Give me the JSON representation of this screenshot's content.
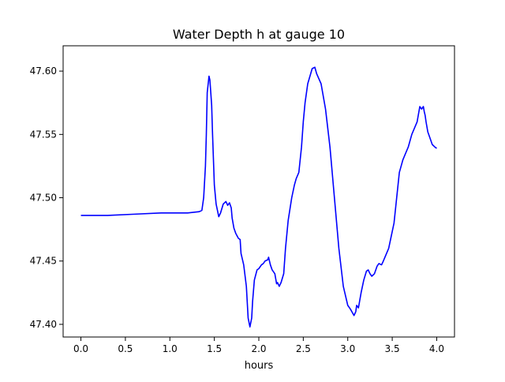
{
  "chart_data": {
    "type": "line",
    "title": "Water Depth h at gauge 10",
    "xlabel": "hours",
    "ylabel": "",
    "xlim": [
      -0.2,
      4.2
    ],
    "ylim": [
      47.39,
      47.62
    ],
    "xticks": [
      0.0,
      0.5,
      1.0,
      1.5,
      2.0,
      2.5,
      3.0,
      3.5,
      4.0
    ],
    "xtick_labels": [
      "0.0",
      "0.5",
      "1.0",
      "1.5",
      "2.0",
      "2.5",
      "3.0",
      "3.5",
      "4.0"
    ],
    "yticks": [
      47.4,
      47.45,
      47.5,
      47.55,
      47.6
    ],
    "ytick_labels": [
      "47.40",
      "47.45",
      "47.50",
      "47.55",
      "47.60"
    ],
    "grid": false,
    "series": [
      {
        "name": "",
        "color": "#0000ff",
        "x": [
          0.0,
          0.3,
          0.6,
          0.9,
          1.2,
          1.33,
          1.36,
          1.38,
          1.4,
          1.41,
          1.42,
          1.44,
          1.45,
          1.47,
          1.48,
          1.5,
          1.52,
          1.55,
          1.57,
          1.6,
          1.63,
          1.65,
          1.67,
          1.69,
          1.7,
          1.72,
          1.74,
          1.77,
          1.79,
          1.8,
          1.83,
          1.86,
          1.88,
          1.9,
          1.92,
          1.93,
          1.95,
          1.98,
          2.0,
          2.03,
          2.05,
          2.07,
          2.1,
          2.11,
          2.13,
          2.15,
          2.18,
          2.2,
          2.21,
          2.23,
          2.25,
          2.28,
          2.3,
          2.33,
          2.37,
          2.4,
          2.42,
          2.45,
          2.48,
          2.5,
          2.52,
          2.55,
          2.6,
          2.63,
          2.65,
          2.7,
          2.75,
          2.8,
          2.85,
          2.9,
          2.95,
          3.0,
          3.03,
          3.07,
          3.09,
          3.1,
          3.12,
          3.15,
          3.18,
          3.21,
          3.23,
          3.25,
          3.27,
          3.3,
          3.33,
          3.35,
          3.38,
          3.4,
          3.43,
          3.46,
          3.49,
          3.52,
          3.55,
          3.58,
          3.62,
          3.65,
          3.68,
          3.72,
          3.75,
          3.78,
          3.81,
          3.83,
          3.85,
          3.86,
          3.87,
          3.88,
          3.9,
          3.92,
          3.95,
          3.98,
          4.0
        ],
        "y": [
          47.486,
          47.486,
          47.487,
          47.488,
          47.488,
          47.489,
          47.49,
          47.5,
          47.525,
          47.55,
          47.583,
          47.596,
          47.593,
          47.573,
          47.55,
          47.51,
          47.495,
          47.485,
          47.488,
          47.495,
          47.497,
          47.494,
          47.496,
          47.492,
          47.484,
          47.476,
          47.472,
          47.468,
          47.467,
          47.456,
          47.447,
          47.43,
          47.405,
          47.398,
          47.405,
          47.418,
          47.435,
          47.443,
          47.444,
          47.447,
          47.448,
          47.45,
          47.451,
          47.453,
          47.447,
          47.443,
          47.44,
          47.432,
          47.433,
          47.43,
          47.433,
          47.44,
          47.46,
          47.482,
          47.5,
          47.51,
          47.515,
          47.52,
          47.54,
          47.56,
          47.575,
          47.59,
          47.602,
          47.603,
          47.598,
          47.59,
          47.57,
          47.54,
          47.5,
          47.46,
          47.43,
          47.415,
          47.412,
          47.407,
          47.41,
          47.415,
          47.413,
          47.425,
          47.435,
          47.442,
          47.443,
          47.44,
          47.438,
          47.44,
          47.446,
          47.448,
          47.447,
          47.45,
          47.455,
          47.46,
          47.47,
          47.48,
          47.5,
          47.52,
          47.53,
          47.535,
          47.54,
          47.55,
          47.555,
          47.56,
          47.572,
          47.57,
          47.572,
          47.568,
          47.565,
          47.56,
          47.552,
          47.548,
          47.542,
          47.54,
          47.539
        ]
      }
    ]
  }
}
